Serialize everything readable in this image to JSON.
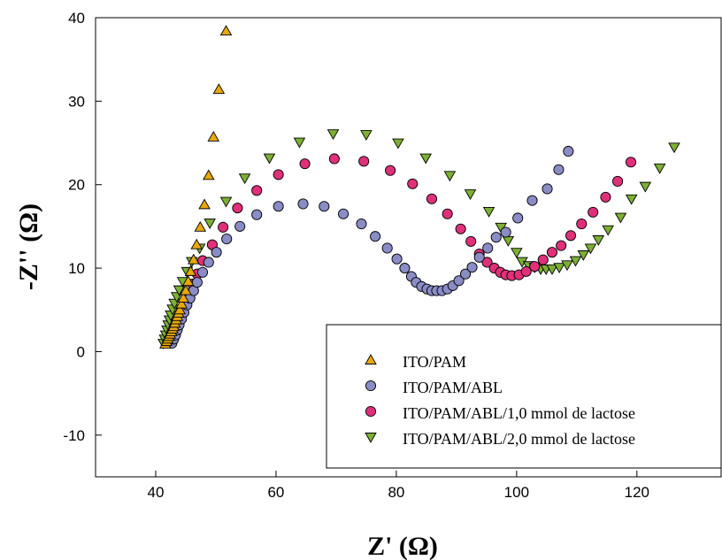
{
  "chart_data": {
    "type": "scatter",
    "xlabel": "Z' (Ω)",
    "ylabel": "-Z'' (Ω)",
    "xlim": [
      30,
      134
    ],
    "ylim": [
      -15,
      40
    ],
    "xticks": [
      40,
      60,
      80,
      100,
      120
    ],
    "yticks": [
      -10,
      0,
      10,
      20,
      30,
      40
    ],
    "grid": false,
    "legend_position": "bottom-right",
    "series": [
      {
        "name": "ITO/PAM",
        "marker": "triangle-up",
        "color": "#E8A70A",
        "points": [
          [
            41.6,
            0.9
          ],
          [
            41.8,
            1.2
          ],
          [
            42.0,
            1.5
          ],
          [
            42.2,
            1.8
          ],
          [
            42.4,
            2.1
          ],
          [
            42.6,
            2.4
          ],
          [
            42.8,
            2.7
          ],
          [
            43.0,
            3.0
          ],
          [
            43.2,
            3.4
          ],
          [
            43.4,
            3.8
          ],
          [
            43.6,
            4.2
          ],
          [
            43.8,
            4.6
          ],
          [
            44.0,
            5.0
          ],
          [
            44.3,
            5.7
          ],
          [
            44.6,
            6.4
          ],
          [
            45.0,
            7.3
          ],
          [
            45.4,
            8.4
          ],
          [
            45.8,
            9.6
          ],
          [
            46.3,
            11.0
          ],
          [
            46.8,
            12.8
          ],
          [
            47.4,
            14.9
          ],
          [
            48.1,
            17.6
          ],
          [
            48.8,
            21.1
          ],
          [
            49.6,
            25.7
          ],
          [
            50.5,
            31.4
          ],
          [
            51.7,
            38.4
          ]
        ]
      },
      {
        "name": "ITO/PAM/ABL",
        "marker": "circle",
        "color": "#8A8CC6",
        "points": [
          [
            42.7,
            1.0
          ],
          [
            43.0,
            1.5
          ],
          [
            43.3,
            2.0
          ],
          [
            43.6,
            2.6
          ],
          [
            43.9,
            3.2
          ],
          [
            44.3,
            3.9
          ],
          [
            44.7,
            4.7
          ],
          [
            45.2,
            5.6
          ],
          [
            45.7,
            6.4
          ],
          [
            46.3,
            7.3
          ],
          [
            46.9,
            8.3
          ],
          [
            47.8,
            9.5
          ],
          [
            48.8,
            10.7
          ],
          [
            50.1,
            11.9
          ],
          [
            51.8,
            13.5
          ],
          [
            54.0,
            15.0
          ],
          [
            56.8,
            16.4
          ],
          [
            60.4,
            17.4
          ],
          [
            64.5,
            17.7
          ],
          [
            68.0,
            17.4
          ],
          [
            71.2,
            16.5
          ],
          [
            74.2,
            15.3
          ],
          [
            76.5,
            13.8
          ],
          [
            78.5,
            12.4
          ],
          [
            80.1,
            11.1
          ],
          [
            81.4,
            10.0
          ],
          [
            82.5,
            9.0
          ],
          [
            83.3,
            8.3
          ],
          [
            84.2,
            7.8
          ],
          [
            85.1,
            7.5
          ],
          [
            85.9,
            7.3
          ],
          [
            86.7,
            7.3
          ],
          [
            87.6,
            7.3
          ],
          [
            88.5,
            7.5
          ],
          [
            89.4,
            7.9
          ],
          [
            90.4,
            8.5
          ],
          [
            91.5,
            9.3
          ],
          [
            92.6,
            10.1
          ],
          [
            93.8,
            11.3
          ],
          [
            95.2,
            12.4
          ],
          [
            96.6,
            13.7
          ],
          [
            98.2,
            14.3
          ],
          [
            100.2,
            16.0
          ],
          [
            102.6,
            18.1
          ],
          [
            105.1,
            19.5
          ],
          [
            107.0,
            21.8
          ],
          [
            108.6,
            24.0
          ]
        ]
      },
      {
        "name": "ITO/PAM/ABL/1,0 mmol de lactose",
        "marker": "circle",
        "color": "#E0307A",
        "points": [
          [
            42.0,
            1.1
          ],
          [
            42.3,
            1.6
          ],
          [
            42.6,
            2.2
          ],
          [
            43.0,
            2.8
          ],
          [
            43.4,
            3.5
          ],
          [
            43.8,
            4.2
          ],
          [
            44.3,
            5.0
          ],
          [
            44.8,
            5.9
          ],
          [
            45.4,
            6.9
          ],
          [
            46.1,
            8.1
          ],
          [
            46.9,
            9.3
          ],
          [
            47.8,
            10.9
          ],
          [
            49.4,
            12.8
          ],
          [
            51.2,
            14.9
          ],
          [
            53.6,
            17.2
          ],
          [
            56.8,
            19.3
          ],
          [
            60.4,
            21.2
          ],
          [
            64.8,
            22.5
          ],
          [
            69.7,
            23.1
          ],
          [
            74.6,
            22.8
          ],
          [
            79.0,
            21.7
          ],
          [
            82.7,
            20.1
          ],
          [
            85.9,
            18.3
          ],
          [
            88.5,
            16.5
          ],
          [
            90.7,
            14.7
          ],
          [
            92.4,
            13.2
          ],
          [
            93.8,
            11.7
          ],
          [
            95.1,
            10.7
          ],
          [
            96.3,
            10.0
          ],
          [
            97.3,
            9.5
          ],
          [
            98.2,
            9.2
          ],
          [
            99.2,
            9.1
          ],
          [
            100.4,
            9.2
          ],
          [
            101.6,
            9.6
          ],
          [
            103.0,
            10.2
          ],
          [
            104.4,
            11.0
          ],
          [
            105.9,
            11.9
          ],
          [
            107.4,
            12.7
          ],
          [
            109.0,
            13.9
          ],
          [
            110.8,
            15.3
          ],
          [
            112.7,
            16.7
          ],
          [
            114.8,
            18.5
          ],
          [
            116.8,
            20.4
          ],
          [
            119.0,
            22.7
          ]
        ]
      },
      {
        "name": "ITO/PAM/ABL/2,0 mmol de lactose",
        "marker": "triangle-down",
        "color": "#7CB034",
        "points": [
          [
            41.3,
            1.0
          ],
          [
            41.5,
            1.5
          ],
          [
            41.7,
            2.0
          ],
          [
            41.9,
            2.6
          ],
          [
            42.1,
            3.2
          ],
          [
            42.3,
            3.8
          ],
          [
            42.5,
            4.4
          ],
          [
            42.8,
            5.1
          ],
          [
            43.1,
            5.8
          ],
          [
            43.5,
            6.6
          ],
          [
            43.9,
            7.4
          ],
          [
            44.5,
            8.4
          ],
          [
            45.2,
            9.6
          ],
          [
            46.0,
            10.8
          ],
          [
            47.3,
            12.4
          ],
          [
            49.0,
            15.4
          ],
          [
            51.7,
            18.0
          ],
          [
            54.8,
            20.8
          ],
          [
            58.9,
            23.2
          ],
          [
            63.9,
            25.1
          ],
          [
            69.5,
            26.1
          ],
          [
            75.0,
            26.0
          ],
          [
            80.3,
            25.0
          ],
          [
            84.9,
            23.2
          ],
          [
            88.9,
            21.1
          ],
          [
            92.3,
            18.9
          ],
          [
            95.4,
            16.8
          ],
          [
            97.4,
            14.9
          ],
          [
            98.6,
            13.3
          ],
          [
            100.0,
            11.9
          ],
          [
            100.9,
            10.8
          ],
          [
            102.0,
            10.3
          ],
          [
            103.0,
            10.1
          ],
          [
            104.0,
            9.9
          ],
          [
            104.9,
            9.9
          ],
          [
            105.9,
            9.9
          ],
          [
            107.1,
            10.1
          ],
          [
            108.4,
            10.4
          ],
          [
            109.8,
            10.9
          ],
          [
            111.1,
            11.6
          ],
          [
            112.3,
            12.4
          ],
          [
            113.6,
            13.4
          ],
          [
            115.2,
            14.6
          ],
          [
            117.3,
            16.1
          ],
          [
            119.1,
            18.3
          ],
          [
            121.4,
            19.8
          ],
          [
            123.8,
            22.0
          ],
          [
            126.2,
            24.5
          ]
        ]
      }
    ]
  }
}
